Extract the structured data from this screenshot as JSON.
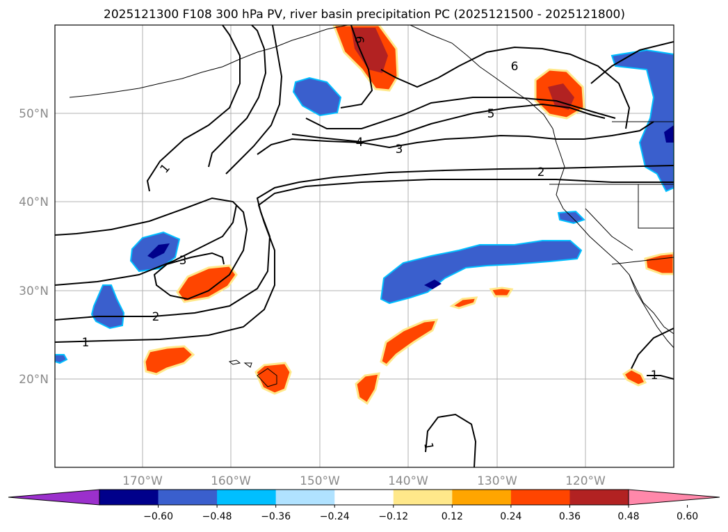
{
  "title": "2025121300 F108 300 hPa PV, river basin precipitation PC (2025121500 - 2025121800)",
  "map": {
    "lat_labels": [
      "50°N",
      "40°N",
      "30°N",
      "20°N"
    ],
    "lon_labels": [
      "170°W",
      "160°W",
      "150°W",
      "140°W",
      "130°W",
      "120°W"
    ],
    "grid": true,
    "extent": {
      "lon_min": -180,
      "lon_max": -110,
      "lat_min": 10,
      "lat_max": 60
    }
  },
  "pv_contour_labels": [
    "1",
    "2",
    "3",
    "4",
    "5",
    "6",
    "1",
    "2",
    "3",
    "1",
    "1"
  ],
  "colorbar": {
    "ticks": [
      "−0.60",
      "−0.48",
      "−0.36",
      "−0.24",
      "−0.12",
      "0.12",
      "0.24",
      "0.36",
      "0.48",
      "0.60"
    ],
    "colors": [
      "#9b30cc",
      "#00008b",
      "#3a5fcd",
      "#00bfff",
      "#b0e2ff",
      "#ffffff",
      "#ffe88a",
      "#ffa500",
      "#ff4500",
      "#b22222",
      "#ff88aa"
    ],
    "extend": "both"
  }
}
